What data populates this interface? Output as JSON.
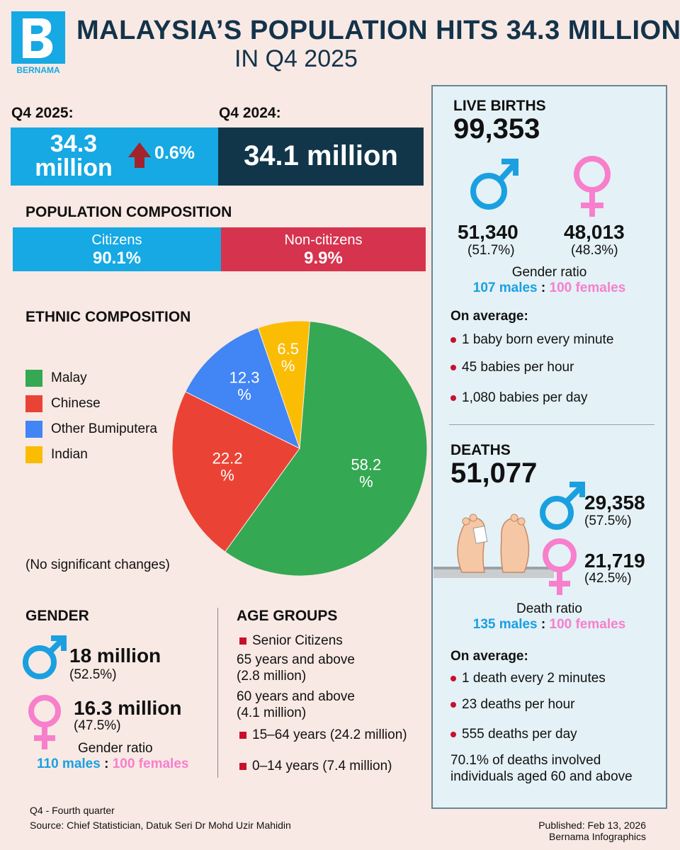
{
  "header": {
    "logo_text": "BERNAMA",
    "title_line1": "MALAYSIA’S POPULATION HITS 34.3 MILLION",
    "title_line2": "IN Q4 2025"
  },
  "population": {
    "current_label": "Q4 2025:",
    "current_value_line1": "34.3",
    "current_value_line2": "million",
    "change": "0.6%",
    "previous_label": "Q4 2024:",
    "previous_value": "34.1 million"
  },
  "composition": {
    "title": "POPULATION COMPOSITION",
    "citizens_label": "Citizens",
    "citizens_value": "90.1%",
    "noncitizens_label": "Non-citizens",
    "noncitizens_value": "9.9%"
  },
  "ethnic": {
    "title": "ETHNIC COMPOSITION",
    "note": "(No significant changes)"
  },
  "chart_data": {
    "type": "pie",
    "title": "ETHNIC COMPOSITION",
    "unit": "%",
    "slices": [
      {
        "name": "Malay",
        "value": 58.2,
        "label_top": "58.2",
        "color": "#34a853"
      },
      {
        "name": "Chinese",
        "value": 22.2,
        "label_top": "22.2",
        "color": "#ea4335"
      },
      {
        "name": "Other Bumiputera",
        "value": 12.3,
        "label_top": "12.3",
        "color": "#4285f4"
      },
      {
        "name": "Indian",
        "value": 6.5,
        "label_top": "6.5",
        "color": "#fbbc04"
      }
    ],
    "legend_placement": "left"
  },
  "gender": {
    "title": "GENDER",
    "male_value": "18 million",
    "male_pct": "(52.5%)",
    "female_value": "16.3 million",
    "female_pct": "(47.5%)",
    "ratio_label": "Gender ratio",
    "ratio_males": "110 males",
    "ratio_sep": ":",
    "ratio_females": "100 females"
  },
  "age": {
    "title": "AGE GROUPS",
    "senior_label": "Senior Citizens",
    "senior_65_line1": "65 years and above",
    "senior_65_line2": "(2.8 million)",
    "senior_60_line1": "60 years and above",
    "senior_60_line2": "(4.1 million)",
    "working": "15–64 years (24.2 million)",
    "young": "0–14 years (7.4 million)"
  },
  "births": {
    "title": "LIVE BIRTHS",
    "total": "99,353",
    "male_value": "51,340",
    "male_pct": "(51.7%)",
    "female_value": "48,013",
    "female_pct": "(48.3%)",
    "ratio_label": "Gender ratio",
    "ratio_males": "107 males",
    "ratio_sep": ":",
    "ratio_females": "100 females",
    "avg_title": "On average:",
    "avg_items": [
      "1 baby born every minute",
      "45 babies per hour",
      "1,080 babies per day"
    ]
  },
  "deaths": {
    "title": "DEATHS",
    "total": "51,077",
    "male_value": "29,358",
    "male_pct": "(57.5%)",
    "female_value": "21,719",
    "female_pct": "(42.5%)",
    "ratio_label": "Death ratio",
    "ratio_males": "135 males",
    "ratio_sep": ":",
    "ratio_females": "100 females",
    "avg_title": "On average:",
    "avg_items": [
      "1 death every 2 minutes",
      "23 deaths per hour",
      "555 deaths per day"
    ],
    "note_line1": "70.1% of deaths involved",
    "note_line2": "individuals aged 60 and above"
  },
  "footer": {
    "abbrev": "Q4 - Fourth quarter",
    "source": "Source: Chief Statistician, Datuk Seri Dr Mohd Uzir Mahidin",
    "published": "Published: Feb 13, 2026",
    "credit": "Bernama Infographics"
  },
  "colors": {
    "blue": "#16a9e3",
    "navy": "#123649",
    "crimson": "#d6334f",
    "male": "#1aa0e0",
    "female": "#f77fcc"
  }
}
